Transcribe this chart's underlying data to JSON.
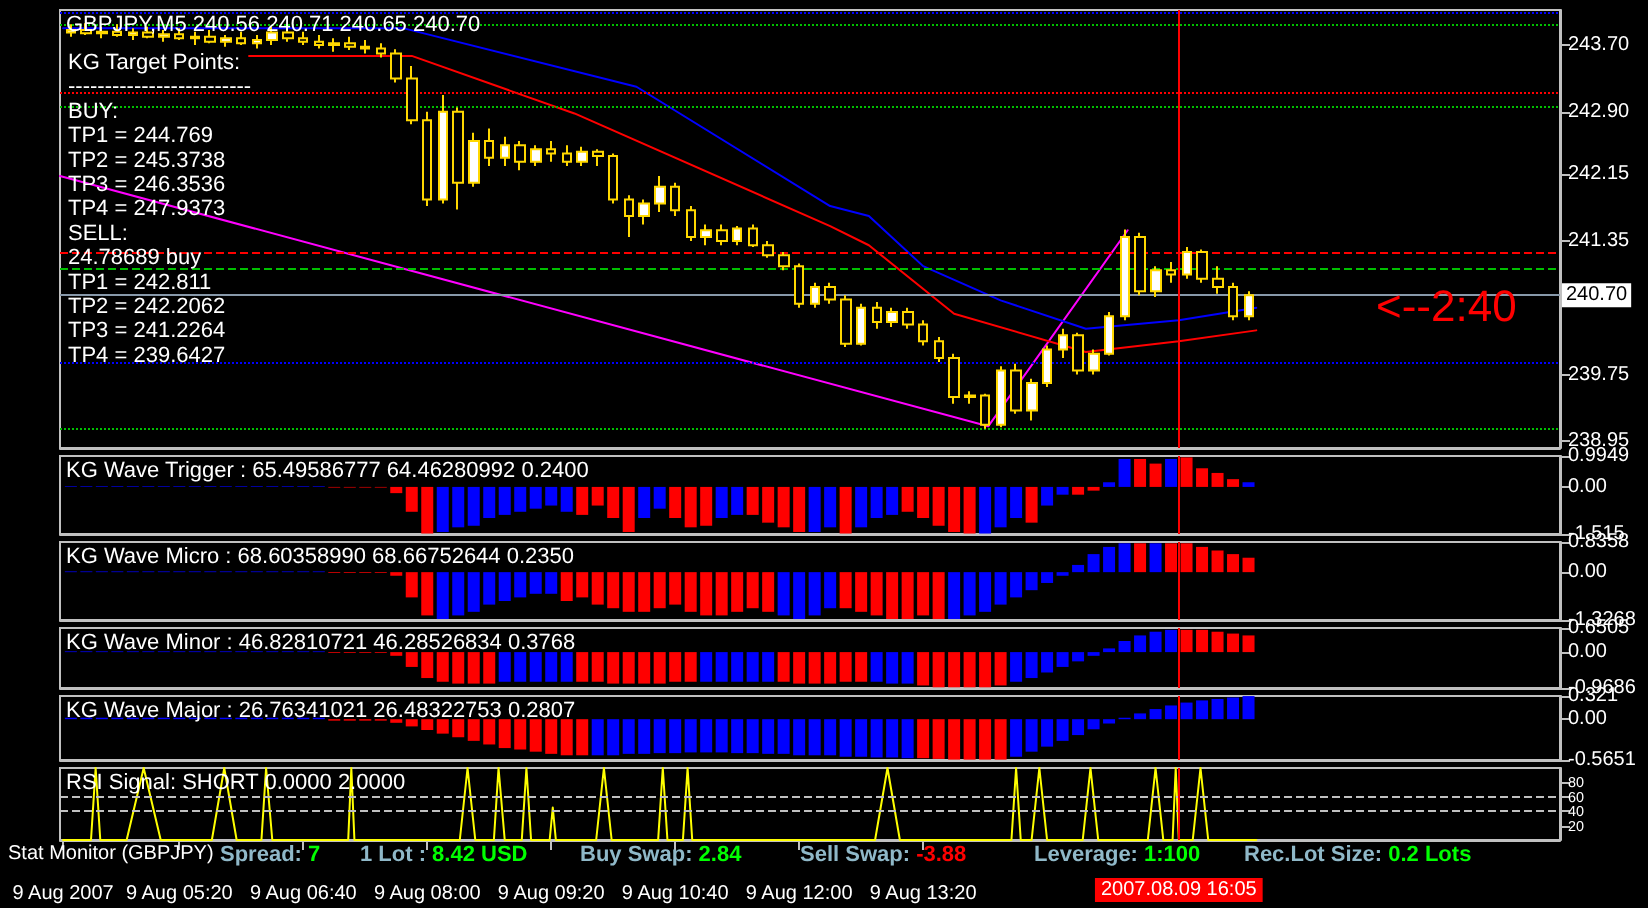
{
  "chart_data": [
    {
      "type": "candlestick",
      "title": "GBPJPY,M5 240.56 240.71 240.65 240.70",
      "color": "#ffd800",
      "x": [
        "2007-08-09T04:10",
        "2007-08-09T04:20",
        "2007-08-09T04:30",
        "2007-08-09T04:40",
        "2007-08-09T04:50",
        "2007-08-09T05:00",
        "2007-08-09T05:10",
        "2007-08-09T05:20",
        "2007-08-09T05:30",
        "2007-08-09T05:40",
        "2007-08-09T05:50",
        "2007-08-09T06:00",
        "2007-08-09T06:10",
        "2007-08-09T06:20",
        "2007-08-09T06:30",
        "2007-08-09T06:40",
        "2007-08-09T06:50",
        "2007-08-09T07:00",
        "2007-08-09T07:10",
        "2007-08-09T07:20",
        "2007-08-09T07:30",
        "2007-08-09T07:40",
        "2007-08-09T07:50",
        "2007-08-09T08:00",
        "2007-08-09T08:10",
        "2007-08-09T08:20",
        "2007-08-09T08:30",
        "2007-08-09T08:40",
        "2007-08-09T08:50",
        "2007-08-09T09:00",
        "2007-08-09T09:10",
        "2007-08-09T09:20",
        "2007-08-09T09:30",
        "2007-08-09T09:40",
        "2007-08-09T09:50",
        "2007-08-09T10:00",
        "2007-08-09T10:10",
        "2007-08-09T10:20",
        "2007-08-09T10:30",
        "2007-08-09T10:40",
        "2007-08-09T10:50",
        "2007-08-09T11:00",
        "2007-08-09T11:10",
        "2007-08-09T11:20",
        "2007-08-09T11:30",
        "2007-08-09T11:40",
        "2007-08-09T11:50",
        "2007-08-09T12:00",
        "2007-08-09T12:10",
        "2007-08-09T12:20",
        "2007-08-09T12:30",
        "2007-08-09T12:40",
        "2007-08-09T12:50",
        "2007-08-09T13:00",
        "2007-08-09T13:10",
        "2007-08-09T13:20",
        "2007-08-09T13:30",
        "2007-08-09T13:40",
        "2007-08-09T13:50",
        "2007-08-09T14:00",
        "2007-08-09T14:10",
        "2007-08-09T14:20",
        "2007-08-09T14:30",
        "2007-08-09T14:40",
        "2007-08-09T14:50",
        "2007-08-09T15:00",
        "2007-08-09T15:10",
        "2007-08-09T15:20",
        "2007-08-09T15:30",
        "2007-08-09T15:40",
        "2007-08-09T15:50",
        "2007-08-09T16:00",
        "2007-08-09T16:10",
        "2007-08-09T16:20",
        "2007-08-09T16:30",
        "2007-08-09T16:40",
        "2007-08-09T16:50"
      ],
      "ohlc": [
        [
          243.85,
          243.95,
          243.8,
          243.88
        ],
        [
          243.88,
          243.96,
          243.82,
          243.84
        ],
        [
          243.84,
          243.92,
          243.78,
          243.86
        ],
        [
          243.86,
          243.95,
          243.8,
          243.82
        ],
        [
          243.82,
          243.9,
          243.76,
          243.85
        ],
        [
          243.85,
          243.92,
          243.78,
          243.8
        ],
        [
          243.8,
          243.88,
          243.74,
          243.83
        ],
        [
          243.83,
          243.9,
          243.76,
          243.78
        ],
        [
          243.78,
          243.86,
          243.7,
          243.8
        ],
        [
          243.8,
          243.88,
          243.72,
          243.74
        ],
        [
          243.74,
          243.82,
          243.68,
          243.78
        ],
        [
          243.78,
          243.86,
          243.7,
          243.72
        ],
        [
          243.72,
          243.82,
          243.66,
          243.76
        ],
        [
          243.76,
          243.92,
          243.7,
          243.85
        ],
        [
          243.85,
          243.95,
          243.74,
          243.78
        ],
        [
          243.78,
          243.86,
          243.7,
          243.74
        ],
        [
          243.74,
          243.82,
          243.66,
          243.7
        ],
        [
          243.7,
          243.78,
          243.62,
          243.72
        ],
        [
          243.72,
          243.8,
          243.64,
          243.68
        ],
        [
          243.68,
          243.76,
          243.6,
          243.66
        ],
        [
          243.66,
          243.72,
          243.55,
          243.6
        ],
        [
          243.6,
          243.65,
          243.25,
          243.3
        ],
        [
          243.3,
          243.45,
          242.75,
          242.8
        ],
        [
          242.8,
          242.9,
          241.77,
          241.85
        ],
        [
          241.85,
          243.1,
          241.8,
          242.9
        ],
        [
          242.9,
          242.95,
          241.73,
          242.05
        ],
        [
          242.05,
          242.65,
          242.0,
          242.55
        ],
        [
          242.55,
          242.7,
          242.25,
          242.35
        ],
        [
          242.35,
          242.6,
          242.25,
          242.5
        ],
        [
          242.5,
          242.55,
          242.2,
          242.3
        ],
        [
          242.3,
          242.5,
          242.25,
          242.45
        ],
        [
          242.45,
          242.55,
          242.3,
          242.4
        ],
        [
          242.4,
          242.5,
          242.25,
          242.3
        ],
        [
          242.3,
          242.48,
          242.25,
          242.42
        ],
        [
          242.42,
          242.45,
          242.25,
          242.37
        ],
        [
          242.37,
          242.4,
          241.8,
          241.85
        ],
        [
          241.85,
          241.9,
          241.4,
          241.65
        ],
        [
          241.65,
          241.85,
          241.55,
          241.8
        ],
        [
          241.8,
          242.13,
          241.7,
          242.0
        ],
        [
          242.0,
          242.05,
          241.65,
          241.72
        ],
        [
          241.72,
          241.77,
          241.35,
          241.4
        ],
        [
          241.4,
          241.55,
          241.3,
          241.48
        ],
        [
          241.48,
          241.55,
          241.3,
          241.35
        ],
        [
          241.35,
          241.53,
          241.3,
          241.5
        ],
        [
          241.5,
          241.55,
          241.28,
          241.3
        ],
        [
          241.3,
          241.35,
          241.15,
          241.18
        ],
        [
          241.18,
          241.22,
          241.0,
          241.05
        ],
        [
          241.05,
          241.08,
          240.55,
          240.6
        ],
        [
          240.6,
          240.85,
          240.55,
          240.8
        ],
        [
          240.8,
          240.85,
          240.6,
          240.65
        ],
        [
          240.65,
          240.7,
          240.08,
          240.12
        ],
        [
          240.12,
          240.6,
          240.1,
          240.55
        ],
        [
          240.55,
          240.62,
          240.3,
          240.38
        ],
        [
          240.38,
          240.55,
          240.32,
          240.5
        ],
        [
          240.5,
          240.55,
          240.3,
          240.35
        ],
        [
          240.35,
          240.4,
          240.1,
          240.15
        ],
        [
          240.15,
          240.2,
          239.9,
          239.95
        ],
        [
          239.95,
          240.0,
          239.4,
          239.48
        ],
        [
          239.48,
          239.55,
          239.4,
          239.5
        ],
        [
          239.5,
          239.52,
          239.1,
          239.15
        ],
        [
          239.15,
          239.85,
          239.12,
          239.8
        ],
        [
          239.8,
          239.88,
          239.28,
          239.32
        ],
        [
          239.32,
          239.7,
          239.2,
          239.65
        ],
        [
          239.65,
          240.1,
          239.6,
          240.05
        ],
        [
          240.05,
          240.3,
          239.95,
          240.22
        ],
        [
          240.22,
          240.25,
          239.75,
          239.8
        ],
        [
          239.8,
          240.05,
          239.75,
          240.0
        ],
        [
          240.0,
          240.5,
          239.98,
          240.45
        ],
        [
          240.45,
          241.49,
          240.4,
          241.4
        ],
        [
          241.4,
          241.45,
          240.7,
          240.75
        ],
        [
          240.75,
          241.05,
          240.68,
          241.0
        ],
        [
          241.0,
          241.1,
          240.85,
          240.95
        ],
        [
          240.95,
          241.28,
          240.9,
          241.22
        ],
        [
          241.22,
          241.25,
          240.85,
          240.9
        ],
        [
          240.9,
          241.05,
          240.72,
          240.8
        ],
        [
          240.8,
          240.85,
          240.4,
          240.45
        ],
        [
          240.45,
          240.75,
          240.4,
          240.7
        ]
      ],
      "series": [
        {
          "type": "line",
          "color": "#ff00ff",
          "x": [
            "2007-08-09T04:03",
            "2007-08-09T14:02",
            "2007-08-09T15:32"
          ],
          "values": [
            242.13,
            239.13,
            241.48
          ]
        },
        {
          "type": "line",
          "color": "#0000ff",
          "x": [
            "2007-08-09T04:05",
            "2007-08-09T07:45",
            "2007-08-09T10:15",
            "2007-08-09T12:20",
            "2007-08-09T12:45",
            "2007-08-09T13:20",
            "2007-08-09T14:10",
            "2007-08-09T15:05",
            "2007-08-09T16:05",
            "2007-08-09T16:55"
          ],
          "values": [
            243.9,
            243.9,
            243.2,
            241.77,
            241.65,
            241.05,
            240.64,
            240.3,
            240.4,
            240.55
          ]
        },
        {
          "type": "line",
          "color": "#ff0000",
          "x": [
            "2007-08-09T06:05",
            "2007-08-09T07:50",
            "2007-08-09T09:35",
            "2007-08-09T12:20",
            "2007-08-09T12:45",
            "2007-08-09T13:40",
            "2007-08-09T15:05",
            "2007-08-09T16:05",
            "2007-08-09T16:55"
          ],
          "values": [
            243.57,
            243.57,
            242.88,
            241.53,
            241.3,
            240.48,
            240.02,
            240.15,
            240.28
          ]
        }
      ],
      "xlim": [
        "2007-08-09T04:03",
        "2007-08-09T20:11"
      ],
      "ylim": [
        238.87,
        244.12
      ],
      "yticks": [
        {
          "value": 243.7,
          "label": "243.70"
        },
        {
          "value": 242.9,
          "label": "242.90"
        },
        242.15,
        241.35,
        239.75,
        238.95
      ],
      "tick_labels": "y",
      "grid": false,
      "ref_lines": [
        {
          "axis": "y",
          "value": 244.1,
          "color": "#0000ff",
          "line_style": "dotted"
        },
        {
          "axis": "y",
          "value": 243.94,
          "color": "#00c000",
          "line_style": "dotted"
        },
        {
          "axis": "y",
          "value": 243.12,
          "color": "#ff0000",
          "line_style": "dotted"
        },
        {
          "axis": "y",
          "value": 242.97,
          "color": "#00c000",
          "line_style": "dotted"
        },
        {
          "axis": "y",
          "value": 241.21,
          "color": "#ff0000",
          "line_style": "dashed"
        },
        {
          "axis": "y",
          "value": 241.03,
          "color": "#00c000",
          "line_style": "dashed"
        },
        {
          "axis": "y",
          "value": 240.7,
          "color": "#8899aa",
          "line_style": "solid",
          "label": "240.70"
        },
        {
          "axis": "y",
          "value": 239.89,
          "color": "#0000ff",
          "line_style": "dotted"
        },
        {
          "axis": "y",
          "value": 239.1,
          "color": "#00c000",
          "line_style": "dotted"
        },
        {
          "axis": "x",
          "value": "2007-08-09T16:05",
          "color": "#ff0000",
          "line_style": "solid"
        }
      ],
      "annotations": [
        "KG Target Points:",
        "-------------------------",
        "BUY:",
        "TP1 = 244.769",
        "TP2 = 245.3738",
        "TP3 = 246.3536",
        "TP4 = 247.9373",
        "SELL:",
        "24.78689 buy",
        "TP1 = 242.811",
        "TP2 = 242.2062",
        "TP3 = 241.2264",
        "TP4 = 239.6427",
        "<--2:40"
      ]
    },
    {
      "type": "bar",
      "title": "KG Wave Trigger : 65.49586777 64.46280992 0.2400",
      "x": [
        "2007-08-09T04:10",
        "2007-08-09T04:20",
        "2007-08-09T04:30",
        "2007-08-09T04:40",
        "2007-08-09T04:50",
        "2007-08-09T05:00",
        "2007-08-09T05:10",
        "2007-08-09T05:20",
        "2007-08-09T05:30",
        "2007-08-09T05:40",
        "2007-08-09T05:50",
        "2007-08-09T06:00",
        "2007-08-09T06:10",
        "2007-08-09T06:20",
        "2007-08-09T06:30",
        "2007-08-09T06:40",
        "2007-08-09T06:50",
        "2007-08-09T07:00",
        "2007-08-09T07:10",
        "2007-08-09T07:20",
        "2007-08-09T07:30",
        "2007-08-09T07:40",
        "2007-08-09T07:50",
        "2007-08-09T08:00",
        "2007-08-09T08:10",
        "2007-08-09T08:20",
        "2007-08-09T08:30",
        "2007-08-09T08:40",
        "2007-08-09T08:50",
        "2007-08-09T09:00",
        "2007-08-09T09:10",
        "2007-08-09T09:20",
        "2007-08-09T09:30",
        "2007-08-09T09:40",
        "2007-08-09T09:50",
        "2007-08-09T10:00",
        "2007-08-09T10:10",
        "2007-08-09T10:20",
        "2007-08-09T10:30",
        "2007-08-09T10:40",
        "2007-08-09T10:50",
        "2007-08-09T11:00",
        "2007-08-09T11:10",
        "2007-08-09T11:20",
        "2007-08-09T11:30",
        "2007-08-09T11:40",
        "2007-08-09T11:50",
        "2007-08-09T12:00",
        "2007-08-09T12:10",
        "2007-08-09T12:20",
        "2007-08-09T12:30",
        "2007-08-09T12:40",
        "2007-08-09T12:50",
        "2007-08-09T13:00",
        "2007-08-09T13:10",
        "2007-08-09T13:20",
        "2007-08-09T13:30",
        "2007-08-09T13:40",
        "2007-08-09T13:50",
        "2007-08-09T14:00",
        "2007-08-09T14:10",
        "2007-08-09T14:20",
        "2007-08-09T14:30",
        "2007-08-09T14:40",
        "2007-08-09T14:50",
        "2007-08-09T15:00",
        "2007-08-09T15:10",
        "2007-08-09T15:20",
        "2007-08-09T15:30",
        "2007-08-09T15:40",
        "2007-08-09T15:50",
        "2007-08-09T16:00",
        "2007-08-09T16:10",
        "2007-08-09T16:20",
        "2007-08-09T16:30",
        "2007-08-09T16:40",
        "2007-08-09T16:50"
      ],
      "values": [
        0.02,
        0.02,
        0.02,
        0.02,
        0.02,
        0.02,
        0.02,
        0.02,
        0.02,
        0.02,
        0.02,
        0.02,
        0.02,
        0.02,
        0.02,
        0.02,
        0.02,
        -0.02,
        -0.02,
        -0.02,
        -0.02,
        -0.2,
        -0.8,
        -1.5,
        -1.45,
        -1.3,
        -1.25,
        -1.0,
        -0.9,
        -0.8,
        -0.7,
        -0.6,
        -0.8,
        -0.9,
        -0.6,
        -1.0,
        -1.45,
        -1.0,
        -0.7,
        -1.0,
        -1.3,
        -1.25,
        -1.0,
        -0.9,
        -0.9,
        -1.15,
        -1.3,
        -1.45,
        -1.45,
        -1.3,
        -1.5,
        -1.3,
        -1.0,
        -0.9,
        -0.8,
        -1.0,
        -1.25,
        -1.45,
        -1.5,
        -1.5,
        -1.3,
        -1.0,
        -1.15,
        -0.6,
        -0.25,
        -0.25,
        -0.12,
        0.15,
        0.9,
        0.9,
        0.75,
        0.9,
        0.95,
        0.6,
        0.45,
        0.25,
        0.15
      ],
      "colors": [
        "#0000ff",
        "#0000ff",
        "#0000ff",
        "#0000ff",
        "#0000ff",
        "#0000ff",
        "#0000ff",
        "#0000ff",
        "#0000ff",
        "#0000ff",
        "#0000ff",
        "#0000ff",
        "#0000ff",
        "#0000ff",
        "#0000ff",
        "#0000ff",
        "#0000ff",
        "#ff0000",
        "#ff0000",
        "#ff0000",
        "#ff0000",
        "#ff0000",
        "#ff0000",
        "#ff0000",
        "#0000ff",
        "#0000ff",
        "#0000ff",
        "#0000ff",
        "#0000ff",
        "#0000ff",
        "#0000ff",
        "#0000ff",
        "#0000ff",
        "#ff0000",
        "#ff0000",
        "#ff0000",
        "#ff0000",
        "#0000ff",
        "#0000ff",
        "#ff0000",
        "#ff0000",
        "#ff0000",
        "#0000ff",
        "#0000ff",
        "#ff0000",
        "#ff0000",
        "#ff0000",
        "#ff0000",
        "#0000ff",
        "#0000ff",
        "#ff0000",
        "#0000ff",
        "#0000ff",
        "#0000ff",
        "#ff0000",
        "#ff0000",
        "#ff0000",
        "#ff0000",
        "#ff0000",
        "#0000ff",
        "#0000ff",
        "#0000ff",
        "#ff0000",
        "#0000ff",
        "#0000ff",
        "#ff0000",
        "#ff0000",
        "#0000ff",
        "#0000ff",
        "#ff0000",
        "#ff0000",
        "#0000ff",
        "#ff0000",
        "#ff0000",
        "#ff0000",
        "#ff0000",
        "#0000ff"
      ],
      "xlim": [
        "2007-08-09T04:03",
        "2007-08-09T20:11"
      ],
      "ylim": [
        -1.515,
        0.9949
      ],
      "yticks": [
        0.9949,
        {
          "value": 0,
          "label": "0.00"
        },
        -1.515
      ],
      "tick_labels": "y",
      "grid": false,
      "ref_lines": [
        {
          "axis": "x",
          "value": "2007-08-09T16:05",
          "color": "#ff0000",
          "line_style": "solid"
        }
      ]
    },
    {
      "type": "bar",
      "title": "KG Wave Micro : 68.60358990 68.66752644 0.2350",
      "x": [
        "2007-08-09T04:10",
        "2007-08-09T04:20",
        "2007-08-09T04:30",
        "2007-08-09T04:40",
        "2007-08-09T04:50",
        "2007-08-09T05:00",
        "2007-08-09T05:10",
        "2007-08-09T05:20",
        "2007-08-09T05:30",
        "2007-08-09T05:40",
        "2007-08-09T05:50",
        "2007-08-09T06:00",
        "2007-08-09T06:10",
        "2007-08-09T06:20",
        "2007-08-09T06:30",
        "2007-08-09T06:40",
        "2007-08-09T06:50",
        "2007-08-09T07:00",
        "2007-08-09T07:10",
        "2007-08-09T07:20",
        "2007-08-09T07:30",
        "2007-08-09T07:40",
        "2007-08-09T07:50",
        "2007-08-09T08:00",
        "2007-08-09T08:10",
        "2007-08-09T08:20",
        "2007-08-09T08:30",
        "2007-08-09T08:40",
        "2007-08-09T08:50",
        "2007-08-09T09:00",
        "2007-08-09T09:10",
        "2007-08-09T09:20",
        "2007-08-09T09:30",
        "2007-08-09T09:40",
        "2007-08-09T09:50",
        "2007-08-09T10:00",
        "2007-08-09T10:10",
        "2007-08-09T10:20",
        "2007-08-09T10:30",
        "2007-08-09T10:40",
        "2007-08-09T10:50",
        "2007-08-09T11:00",
        "2007-08-09T11:10",
        "2007-08-09T11:20",
        "2007-08-09T11:30",
        "2007-08-09T11:40",
        "2007-08-09T11:50",
        "2007-08-09T12:00",
        "2007-08-09T12:10",
        "2007-08-09T12:20",
        "2007-08-09T12:30",
        "2007-08-09T12:40",
        "2007-08-09T12:50",
        "2007-08-09T13:00",
        "2007-08-09T13:10",
        "2007-08-09T13:20",
        "2007-08-09T13:30",
        "2007-08-09T13:40",
        "2007-08-09T13:50",
        "2007-08-09T14:00",
        "2007-08-09T14:10",
        "2007-08-09T14:20",
        "2007-08-09T14:30",
        "2007-08-09T14:40",
        "2007-08-09T14:50",
        "2007-08-09T15:00",
        "2007-08-09T15:10",
        "2007-08-09T15:20",
        "2007-08-09T15:30",
        "2007-08-09T15:40",
        "2007-08-09T15:50",
        "2007-08-09T16:00",
        "2007-08-09T16:10",
        "2007-08-09T16:20",
        "2007-08-09T16:30",
        "2007-08-09T16:40",
        "2007-08-09T16:50"
      ],
      "values": [
        0.02,
        0.02,
        0.02,
        0.02,
        0.02,
        0.02,
        0.02,
        0.02,
        0.02,
        0.02,
        0.02,
        0.02,
        0.02,
        0.02,
        0.02,
        0.02,
        0.02,
        -0.02,
        -0.02,
        -0.02,
        -0.02,
        -0.1,
        -0.7,
        -1.2,
        -1.3,
        -1.2,
        -1.1,
        -0.9,
        -0.8,
        -0.7,
        -0.6,
        -0.6,
        -0.8,
        -0.7,
        -0.9,
        -1.0,
        -1.1,
        -1.1,
        -1.0,
        -0.9,
        -1.1,
        -1.2,
        -1.2,
        -1.1,
        -1.0,
        -1.1,
        -1.2,
        -1.3,
        -1.2,
        -1.0,
        -1.0,
        -1.1,
        -1.2,
        -1.3,
        -1.3,
        -1.2,
        -1.3,
        -1.3,
        -1.2,
        -1.1,
        -0.9,
        -0.7,
        -0.5,
        -0.3,
        -0.1,
        0.2,
        0.5,
        0.7,
        0.8,
        0.8,
        0.8,
        0.8,
        0.8,
        0.7,
        0.6,
        0.5,
        0.4
      ],
      "colors": [
        "#0000ff",
        "#0000ff",
        "#0000ff",
        "#0000ff",
        "#0000ff",
        "#0000ff",
        "#0000ff",
        "#0000ff",
        "#0000ff",
        "#0000ff",
        "#0000ff",
        "#0000ff",
        "#0000ff",
        "#0000ff",
        "#0000ff",
        "#0000ff",
        "#0000ff",
        "#ff0000",
        "#ff0000",
        "#ff0000",
        "#ff0000",
        "#ff0000",
        "#ff0000",
        "#ff0000",
        "#0000ff",
        "#0000ff",
        "#0000ff",
        "#0000ff",
        "#0000ff",
        "#0000ff",
        "#0000ff",
        "#0000ff",
        "#ff0000",
        "#ff0000",
        "#ff0000",
        "#ff0000",
        "#ff0000",
        "#ff0000",
        "#ff0000",
        "#ff0000",
        "#ff0000",
        "#ff0000",
        "#ff0000",
        "#ff0000",
        "#ff0000",
        "#ff0000",
        "#0000ff",
        "#0000ff",
        "#0000ff",
        "#0000ff",
        "#ff0000",
        "#ff0000",
        "#ff0000",
        "#ff0000",
        "#ff0000",
        "#ff0000",
        "#ff0000",
        "#0000ff",
        "#0000ff",
        "#0000ff",
        "#0000ff",
        "#0000ff",
        "#0000ff",
        "#0000ff",
        "#0000ff",
        "#0000ff",
        "#0000ff",
        "#0000ff",
        "#0000ff",
        "#ff0000",
        "#0000ff",
        "#ff0000",
        "#ff0000",
        "#ff0000",
        "#ff0000",
        "#ff0000",
        "#ff0000"
      ],
      "xlim": [
        "2007-08-09T04:03",
        "2007-08-09T20:11"
      ],
      "ylim": [
        -1.3268,
        0.8358
      ],
      "yticks": [
        0.8358,
        {
          "value": 0,
          "label": "0.00"
        },
        -1.3268
      ],
      "tick_labels": "y",
      "grid": false,
      "ref_lines": [
        {
          "axis": "x",
          "value": "2007-08-09T16:05",
          "color": "#ff0000",
          "line_style": "solid"
        }
      ]
    },
    {
      "type": "bar",
      "title": "KG Wave Minor : 46.82810721 46.28526834 0.3768",
      "x": [
        "2007-08-09T04:10",
        "2007-08-09T04:20",
        "2007-08-09T04:30",
        "2007-08-09T04:40",
        "2007-08-09T04:50",
        "2007-08-09T05:00",
        "2007-08-09T05:10",
        "2007-08-09T05:20",
        "2007-08-09T05:30",
        "2007-08-09T05:40",
        "2007-08-09T05:50",
        "2007-08-09T06:00",
        "2007-08-09T06:10",
        "2007-08-09T06:20",
        "2007-08-09T06:30",
        "2007-08-09T06:40",
        "2007-08-09T06:50",
        "2007-08-09T07:00",
        "2007-08-09T07:10",
        "2007-08-09T07:20",
        "2007-08-09T07:30",
        "2007-08-09T07:40",
        "2007-08-09T07:50",
        "2007-08-09T08:00",
        "2007-08-09T08:10",
        "2007-08-09T08:20",
        "2007-08-09T08:30",
        "2007-08-09T08:40",
        "2007-08-09T08:50",
        "2007-08-09T09:00",
        "2007-08-09T09:10",
        "2007-08-09T09:20",
        "2007-08-09T09:30",
        "2007-08-09T09:40",
        "2007-08-09T09:50",
        "2007-08-09T10:00",
        "2007-08-09T10:10",
        "2007-08-09T10:20",
        "2007-08-09T10:30",
        "2007-08-09T10:40",
        "2007-08-09T10:50",
        "2007-08-09T11:00",
        "2007-08-09T11:10",
        "2007-08-09T11:20",
        "2007-08-09T11:30",
        "2007-08-09T11:40",
        "2007-08-09T11:50",
        "2007-08-09T12:00",
        "2007-08-09T12:10",
        "2007-08-09T12:20",
        "2007-08-09T12:30",
        "2007-08-09T12:40",
        "2007-08-09T12:50",
        "2007-08-09T13:00",
        "2007-08-09T13:10",
        "2007-08-09T13:20",
        "2007-08-09T13:30",
        "2007-08-09T13:40",
        "2007-08-09T13:50",
        "2007-08-09T14:00",
        "2007-08-09T14:10",
        "2007-08-09T14:20",
        "2007-08-09T14:30",
        "2007-08-09T14:40",
        "2007-08-09T14:50",
        "2007-08-09T15:00",
        "2007-08-09T15:10",
        "2007-08-09T15:20",
        "2007-08-09T15:30",
        "2007-08-09T15:40",
        "2007-08-09T15:50",
        "2007-08-09T16:00",
        "2007-08-09T16:10",
        "2007-08-09T16:20",
        "2007-08-09T16:30",
        "2007-08-09T16:40",
        "2007-08-09T16:50"
      ],
      "values": [
        0.02,
        0.02,
        0.02,
        0.02,
        0.02,
        0.02,
        0.02,
        0.02,
        0.02,
        0.02,
        0.02,
        0.02,
        0.02,
        0.02,
        0.02,
        0.02,
        0.02,
        -0.02,
        -0.02,
        -0.02,
        -0.02,
        -0.1,
        -0.4,
        -0.7,
        -0.8,
        -0.85,
        -0.85,
        -0.85,
        -0.8,
        -0.8,
        -0.8,
        -0.8,
        -0.8,
        -0.8,
        -0.8,
        -0.85,
        -0.85,
        -0.85,
        -0.85,
        -0.8,
        -0.8,
        -0.8,
        -0.8,
        -0.8,
        -0.8,
        -0.8,
        -0.8,
        -0.85,
        -0.85,
        -0.85,
        -0.8,
        -0.8,
        -0.8,
        -0.85,
        -0.85,
        -0.9,
        -0.95,
        -0.95,
        -0.95,
        -0.95,
        -0.9,
        -0.8,
        -0.7,
        -0.55,
        -0.4,
        -0.25,
        -0.1,
        0.1,
        0.3,
        0.45,
        0.55,
        0.6,
        0.6,
        0.6,
        0.55,
        0.5,
        0.45
      ],
      "colors": [
        "#0000ff",
        "#0000ff",
        "#0000ff",
        "#0000ff",
        "#0000ff",
        "#0000ff",
        "#0000ff",
        "#0000ff",
        "#0000ff",
        "#0000ff",
        "#0000ff",
        "#0000ff",
        "#0000ff",
        "#0000ff",
        "#0000ff",
        "#0000ff",
        "#0000ff",
        "#ff0000",
        "#ff0000",
        "#ff0000",
        "#ff0000",
        "#ff0000",
        "#ff0000",
        "#ff0000",
        "#ff0000",
        "#ff0000",
        "#ff0000",
        "#ff0000",
        "#0000ff",
        "#0000ff",
        "#0000ff",
        "#0000ff",
        "#0000ff",
        "#ff0000",
        "#ff0000",
        "#ff0000",
        "#ff0000",
        "#ff0000",
        "#ff0000",
        "#ff0000",
        "#ff0000",
        "#0000ff",
        "#0000ff",
        "#0000ff",
        "#0000ff",
        "#0000ff",
        "#ff0000",
        "#ff0000",
        "#ff0000",
        "#ff0000",
        "#ff0000",
        "#ff0000",
        "#0000ff",
        "#0000ff",
        "#0000ff",
        "#ff0000",
        "#ff0000",
        "#ff0000",
        "#ff0000",
        "#ff0000",
        "#ff0000",
        "#0000ff",
        "#0000ff",
        "#0000ff",
        "#0000ff",
        "#0000ff",
        "#0000ff",
        "#0000ff",
        "#0000ff",
        "#0000ff",
        "#0000ff",
        "#0000ff",
        "#ff0000",
        "#ff0000",
        "#ff0000",
        "#ff0000",
        "#ff0000"
      ],
      "xlim": [
        "2007-08-09T04:03",
        "2007-08-09T20:11"
      ],
      "ylim": [
        -0.9686,
        0.6505
      ],
      "yticks": [
        0.6505,
        {
          "value": 0,
          "label": "0.00"
        },
        -0.9686
      ],
      "tick_labels": "y",
      "grid": false,
      "ref_lines": [
        {
          "axis": "x",
          "value": "2007-08-09T16:05",
          "color": "#ff0000",
          "line_style": "solid"
        }
      ]
    },
    {
      "type": "bar",
      "title": "KG Wave Major : 26.76341021 26.48322753 0.2807",
      "x": [
        "2007-08-09T04:10",
        "2007-08-09T04:20",
        "2007-08-09T04:30",
        "2007-08-09T04:40",
        "2007-08-09T04:50",
        "2007-08-09T05:00",
        "2007-08-09T05:10",
        "2007-08-09T05:20",
        "2007-08-09T05:30",
        "2007-08-09T05:40",
        "2007-08-09T05:50",
        "2007-08-09T06:00",
        "2007-08-09T06:10",
        "2007-08-09T06:20",
        "2007-08-09T06:30",
        "2007-08-09T06:40",
        "2007-08-09T06:50",
        "2007-08-09T07:00",
        "2007-08-09T07:10",
        "2007-08-09T07:20",
        "2007-08-09T07:30",
        "2007-08-09T07:40",
        "2007-08-09T07:50",
        "2007-08-09T08:00",
        "2007-08-09T08:10",
        "2007-08-09T08:20",
        "2007-08-09T08:30",
        "2007-08-09T08:40",
        "2007-08-09T08:50",
        "2007-08-09T09:00",
        "2007-08-09T09:10",
        "2007-08-09T09:20",
        "2007-08-09T09:30",
        "2007-08-09T09:40",
        "2007-08-09T09:50",
        "2007-08-09T10:00",
        "2007-08-09T10:10",
        "2007-08-09T10:20",
        "2007-08-09T10:30",
        "2007-08-09T10:40",
        "2007-08-09T10:50",
        "2007-08-09T11:00",
        "2007-08-09T11:10",
        "2007-08-09T11:20",
        "2007-08-09T11:30",
        "2007-08-09T11:40",
        "2007-08-09T11:50",
        "2007-08-09T12:00",
        "2007-08-09T12:10",
        "2007-08-09T12:20",
        "2007-08-09T12:30",
        "2007-08-09T12:40",
        "2007-08-09T12:50",
        "2007-08-09T13:00",
        "2007-08-09T13:10",
        "2007-08-09T13:20",
        "2007-08-09T13:30",
        "2007-08-09T13:40",
        "2007-08-09T13:50",
        "2007-08-09T14:00",
        "2007-08-09T14:10",
        "2007-08-09T14:20",
        "2007-08-09T14:30",
        "2007-08-09T14:40",
        "2007-08-09T14:50",
        "2007-08-09T15:00",
        "2007-08-09T15:10",
        "2007-08-09T15:20",
        "2007-08-09T15:30",
        "2007-08-09T15:40",
        "2007-08-09T15:50",
        "2007-08-09T16:00",
        "2007-08-09T16:10",
        "2007-08-09T16:20",
        "2007-08-09T16:30",
        "2007-08-09T16:40",
        "2007-08-09T16:50"
      ],
      "values": [
        0.02,
        0.02,
        0.02,
        0.02,
        0.02,
        0.02,
        0.02,
        0.02,
        0.02,
        0.02,
        0.02,
        0.02,
        0.02,
        0.02,
        0.02,
        0.02,
        0.02,
        -0.02,
        -0.02,
        -0.02,
        -0.02,
        -0.05,
        -0.1,
        -0.15,
        -0.2,
        -0.25,
        -0.3,
        -0.35,
        -0.4,
        -0.42,
        -0.45,
        -0.48,
        -0.5,
        -0.5,
        -0.5,
        -0.5,
        -0.48,
        -0.48,
        -0.47,
        -0.47,
        -0.46,
        -0.46,
        -0.46,
        -0.47,
        -0.47,
        -0.48,
        -0.48,
        -0.5,
        -0.5,
        -0.5,
        -0.52,
        -0.52,
        -0.53,
        -0.53,
        -0.54,
        -0.54,
        -0.55,
        -0.56,
        -0.56,
        -0.56,
        -0.56,
        -0.52,
        -0.45,
        -0.38,
        -0.3,
        -0.22,
        -0.14,
        -0.06,
        0.02,
        0.08,
        0.14,
        0.19,
        0.23,
        0.26,
        0.28,
        0.3,
        0.32
      ],
      "colors": [
        "#0000ff",
        "#0000ff",
        "#0000ff",
        "#0000ff",
        "#0000ff",
        "#0000ff",
        "#0000ff",
        "#0000ff",
        "#0000ff",
        "#0000ff",
        "#0000ff",
        "#0000ff",
        "#0000ff",
        "#0000ff",
        "#0000ff",
        "#0000ff",
        "#0000ff",
        "#ff0000",
        "#ff0000",
        "#ff0000",
        "#ff0000",
        "#ff0000",
        "#ff0000",
        "#ff0000",
        "#ff0000",
        "#ff0000",
        "#ff0000",
        "#ff0000",
        "#ff0000",
        "#ff0000",
        "#ff0000",
        "#ff0000",
        "#ff0000",
        "#ff0000",
        "#0000ff",
        "#0000ff",
        "#0000ff",
        "#0000ff",
        "#0000ff",
        "#0000ff",
        "#0000ff",
        "#0000ff",
        "#0000ff",
        "#0000ff",
        "#0000ff",
        "#0000ff",
        "#0000ff",
        "#0000ff",
        "#0000ff",
        "#0000ff",
        "#0000ff",
        "#0000ff",
        "#0000ff",
        "#0000ff",
        "#0000ff",
        "#ff0000",
        "#ff0000",
        "#ff0000",
        "#ff0000",
        "#ff0000",
        "#ff0000",
        "#0000ff",
        "#0000ff",
        "#0000ff",
        "#0000ff",
        "#0000ff",
        "#0000ff",
        "#0000ff",
        "#0000ff",
        "#0000ff",
        "#0000ff",
        "#0000ff",
        "#0000ff",
        "#0000ff",
        "#0000ff",
        "#0000ff",
        "#0000ff"
      ],
      "xlim": [
        "2007-08-09T04:03",
        "2007-08-09T20:11"
      ],
      "ylim": [
        -0.5651,
        0.321
      ],
      "yticks": [
        0.321,
        {
          "value": 0,
          "label": "0.00"
        },
        -0.5651
      ],
      "tick_labels": "y",
      "grid": false,
      "ref_lines": [
        {
          "axis": "x",
          "value": "2007-08-09T16:05",
          "color": "#ff0000",
          "line_style": "solid"
        }
      ]
    },
    {
      "type": "line",
      "title": "RSI Signal: SHORT 0.0000 2.0000",
      "marker": "none",
      "line_style": "solid",
      "series": [
        {
          "color": "#ffff00",
          "x": [
            "2007-08-09T04:05",
            "2007-08-09T04:23",
            "2007-08-09T04:26",
            "2007-08-09T04:29",
            "2007-08-09T04:46",
            "2007-08-09T04:57",
            "2007-08-09T05:08",
            "2007-08-09T05:41",
            "2007-08-09T05:49",
            "2007-08-09T05:57",
            "2007-08-09T06:13",
            "2007-08-09T06:16",
            "2007-08-09T06:20",
            "2007-08-09T07:09",
            "2007-08-09T07:11",
            "2007-08-09T07:13",
            "2007-08-09T08:21",
            "2007-08-09T08:26",
            "2007-08-09T08:31",
            "2007-08-09T08:43",
            "2007-08-09T08:46",
            "2007-08-09T08:50",
            "2007-08-09T09:01",
            "2007-08-09T09:04",
            "2007-08-09T09:07",
            "2007-08-09T09:19",
            "2007-08-09T09:21",
            "2007-08-09T09:23",
            "2007-08-09T09:49",
            "2007-08-09T09:54",
            "2007-08-09T09:59",
            "2007-08-09T10:29",
            "2007-08-09T10:32",
            "2007-08-09T10:35",
            "2007-08-09T10:45",
            "2007-08-09T10:48",
            "2007-08-09T10:51",
            "2007-08-09T12:49",
            "2007-08-09T12:57",
            "2007-08-09T13:05",
            "2007-08-09T14:17",
            "2007-08-09T14:20",
            "2007-08-09T14:23",
            "2007-08-09T14:30",
            "2007-08-09T14:35",
            "2007-08-09T14:40",
            "2007-08-09T15:03",
            "2007-08-09T15:08",
            "2007-08-09T15:13",
            "2007-08-09T15:45",
            "2007-08-09T15:50",
            "2007-08-09T15:55",
            "2007-08-09T16:01",
            "2007-08-09T16:03",
            "2007-08-09T16:05",
            "2007-08-09T16:14",
            "2007-08-09T16:19",
            "2007-08-09T16:24",
            "2007-08-09T16:55"
          ],
          "values": [
            0,
            0,
            100,
            0,
            0,
            100,
            0,
            0,
            100,
            0,
            0,
            100,
            0,
            0,
            100,
            0,
            0,
            100,
            0,
            0,
            100,
            0,
            0,
            100,
            0,
            0,
            45,
            0,
            0,
            100,
            0,
            0,
            100,
            0,
            0,
            100,
            0,
            0,
            100,
            0,
            0,
            100,
            0,
            0,
            100,
            0,
            0,
            100,
            0,
            0,
            100,
            0,
            0,
            100,
            0,
            0,
            100,
            0,
            0
          ]
        }
      ],
      "xlim": [
        "2007-08-09T04:03",
        "2007-08-09T20:11"
      ],
      "ylim": [
        0,
        100
      ],
      "yticks": [
        80,
        60,
        40,
        20
      ],
      "xticks": [
        {
          "value": "2007-08-09T04:05",
          "label": "9 Aug 2007"
        },
        {
          "value": "2007-08-09T05:20",
          "label": "9 Aug 05:20"
        },
        {
          "value": "2007-08-09T06:40",
          "label": "9 Aug 06:40"
        },
        {
          "value": "2007-08-09T08:00",
          "label": "9 Aug 08:00"
        },
        {
          "value": "2007-08-09T09:20",
          "label": "9 Aug 09:20"
        },
        {
          "value": "2007-08-09T10:40",
          "label": "9 Aug 10:40"
        },
        {
          "value": "2007-08-09T12:00",
          "label": "9 Aug 12:00"
        },
        {
          "value": "2007-08-09T13:20",
          "label": "9 Aug 13:20"
        }
      ],
      "grid": false,
      "ref_lines": [
        {
          "axis": "y",
          "value": 60,
          "color": "#c0c0c0",
          "line_style": "dashed"
        },
        {
          "axis": "y",
          "value": 40,
          "color": "#c0c0c0",
          "line_style": "dashed"
        },
        {
          "axis": "x",
          "value": "2007-08-09T16:05",
          "color": "#ff0000",
          "line_style": "solid",
          "label": "2007.08.09 16:05"
        }
      ]
    },
    {
      "type": "other",
      "annotations": [
        "Stat Monitor (GBPJPY)",
        "Spread: 7",
        "1 Lot : 8.42 USD",
        "Buy Swap: 2.84",
        "Sell Swap: -3.88",
        "Leverage: 1:100",
        "Rec.Lot Size: 0.2 Lots"
      ],
      "colors": [
        "#ffffff",
        "#00ff00",
        "#00ff00",
        "#00ff00",
        "#ff0000",
        "#00ff00",
        "#00ff00"
      ]
    }
  ]
}
